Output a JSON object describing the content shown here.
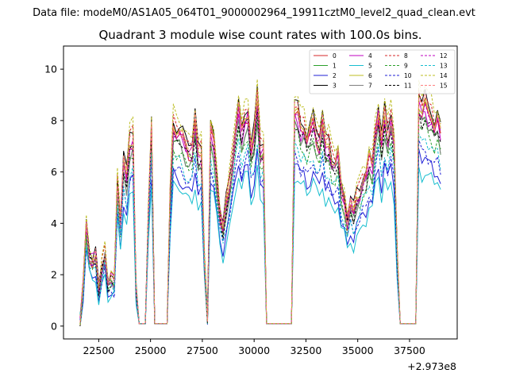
{
  "figure": {
    "suptitle": "Data file: modeM0/AS1A05_064T01_9000002964_19911cztM0_level2_quad_clean.evt",
    "title": "Quadrant 3 module wise count rates with 100.0s bins.",
    "offset_text": "+2.973e8"
  },
  "chart_data": {
    "type": "line",
    "title": "Quadrant 3 module wise count rates with 100.0s bins.",
    "xlabel": "",
    "ylabel": "",
    "x_offset": 297300000,
    "xlim": [
      20800,
      39800
    ],
    "ylim": [
      -0.5,
      10.9
    ],
    "x_ticks": [
      22500,
      25000,
      27500,
      30000,
      32500,
      35000,
      37500
    ],
    "x_tick_labels": [
      "22500",
      "25000",
      "27500",
      "30000",
      "32500",
      "35000",
      "37500"
    ],
    "y_ticks": [
      0,
      2,
      4,
      6,
      8,
      10
    ],
    "y_tick_labels": [
      "0",
      "2",
      "4",
      "6",
      "8",
      "10"
    ],
    "grid": false,
    "legend_position": "upper right",
    "legend_columns": 4,
    "x": [
      21600,
      21750,
      21900,
      22050,
      22200,
      22350,
      22500,
      22650,
      22800,
      22950,
      23100,
      23250,
      23400,
      23550,
      23700,
      23850,
      24000,
      24150,
      24300,
      24450,
      24600,
      24750,
      24900,
      25050,
      25200,
      25350,
      25500,
      25650,
      25800,
      25950,
      26100,
      26250,
      26400,
      26550,
      26700,
      26850,
      27000,
      27150,
      27300,
      27450,
      27600,
      27750,
      27900,
      28050,
      28200,
      28350,
      28500,
      28650,
      28800,
      28950,
      29100,
      29250,
      29400,
      29550,
      29700,
      29850,
      30000,
      30150,
      30300,
      30450,
      30600,
      30750,
      30900,
      31050,
      31200,
      31350,
      31500,
      31650,
      31800,
      31950,
      32100,
      32250,
      32400,
      32550,
      32700,
      32850,
      33000,
      33150,
      33300,
      33450,
      33600,
      33750,
      33900,
      34050,
      34200,
      34350,
      34500,
      34650,
      34800,
      34950,
      35100,
      35250,
      35400,
      35550,
      35700,
      35850,
      36000,
      36150,
      36300,
      36450,
      36600,
      36750,
      36900,
      37050,
      37200,
      37350,
      37500,
      37650,
      37800,
      37950,
      38100,
      38250,
      38400,
      38550,
      38700,
      38850,
      39000
    ],
    "base": [
      0.2,
      1.5,
      3.9,
      2.7,
      2.5,
      2.7,
      1.3,
      2.2,
      2.8,
      1.6,
      1.8,
      1.7,
      5.5,
      4.0,
      6.3,
      5.6,
      7.0,
      7.2,
      1.5,
      0.1,
      0.1,
      0.1,
      4.5,
      7.7,
      0.1,
      0.1,
      0.1,
      0.1,
      0.1,
      5.0,
      7.6,
      7.4,
      7.4,
      7.2,
      6.9,
      6.7,
      6.7,
      7.8,
      6.5,
      6.6,
      2.6,
      0.3,
      7.5,
      7.0,
      5.6,
      4.3,
      3.7,
      4.6,
      5.3,
      6.2,
      7.4,
      8.3,
      7.3,
      7.9,
      8.1,
      6.7,
      7.2,
      8.6,
      6.7,
      6.8,
      0.1,
      0.1,
      0.1,
      0.1,
      0.1,
      0.1,
      0.1,
      0.1,
      0.1,
      8.2,
      8.1,
      7.5,
      7.6,
      7.1,
      7.4,
      7.8,
      7.2,
      7.0,
      7.8,
      6.8,
      6.9,
      6.3,
      6.2,
      6.6,
      5.2,
      4.8,
      4.0,
      4.7,
      4.3,
      4.9,
      5.1,
      5.6,
      5.7,
      6.4,
      6.1,
      7.4,
      8.1,
      6.9,
      8.0,
      7.2,
      7.9,
      7.0,
      2.8,
      0.1,
      0.1,
      0.1,
      0.1,
      0.1,
      0.1,
      8.6,
      8.2,
      8.5,
      8.1,
      8.0,
      7.6,
      7.9,
      7.3
    ],
    "series": [
      {
        "name": "0",
        "color": "#d62728",
        "dash": "solid",
        "scale": 1.0
      },
      {
        "name": "1",
        "color": "#2ca02c",
        "dash": "solid",
        "scale": 0.95
      },
      {
        "name": "2",
        "color": "#1f1fd6",
        "dash": "solid",
        "scale": 0.78
      },
      {
        "name": "3",
        "color": "#000000",
        "dash": "solid",
        "scale": 1.06
      },
      {
        "name": "4",
        "color": "#c000c0",
        "dash": "solid",
        "scale": 1.0
      },
      {
        "name": "5",
        "color": "#17becf",
        "dash": "solid",
        "scale": 0.72
      },
      {
        "name": "6",
        "color": "#bcbd22",
        "dash": "solid",
        "scale": 1.02
      },
      {
        "name": "7",
        "color": "#7f7f7f",
        "dash": "solid",
        "scale": 0.95
      },
      {
        "name": "8",
        "color": "#d62728",
        "dash": "dashed",
        "scale": 1.05
      },
      {
        "name": "9",
        "color": "#2ca02c",
        "dash": "dashed",
        "scale": 0.92
      },
      {
        "name": "10",
        "color": "#1f1fd6",
        "dash": "dashed",
        "scale": 0.82
      },
      {
        "name": "11",
        "color": "#000000",
        "dash": "dashed",
        "scale": 0.97
      },
      {
        "name": "12",
        "color": "#c000c0",
        "dash": "dashed",
        "scale": 1.0
      },
      {
        "name": "13",
        "color": "#17becf",
        "dash": "dashed",
        "scale": 0.86
      },
      {
        "name": "14",
        "color": "#bcbd22",
        "dash": "dashed",
        "scale": 1.1
      },
      {
        "name": "15",
        "color": "#ff7f7f",
        "dash": "dashed",
        "scale": 1.04
      }
    ]
  }
}
